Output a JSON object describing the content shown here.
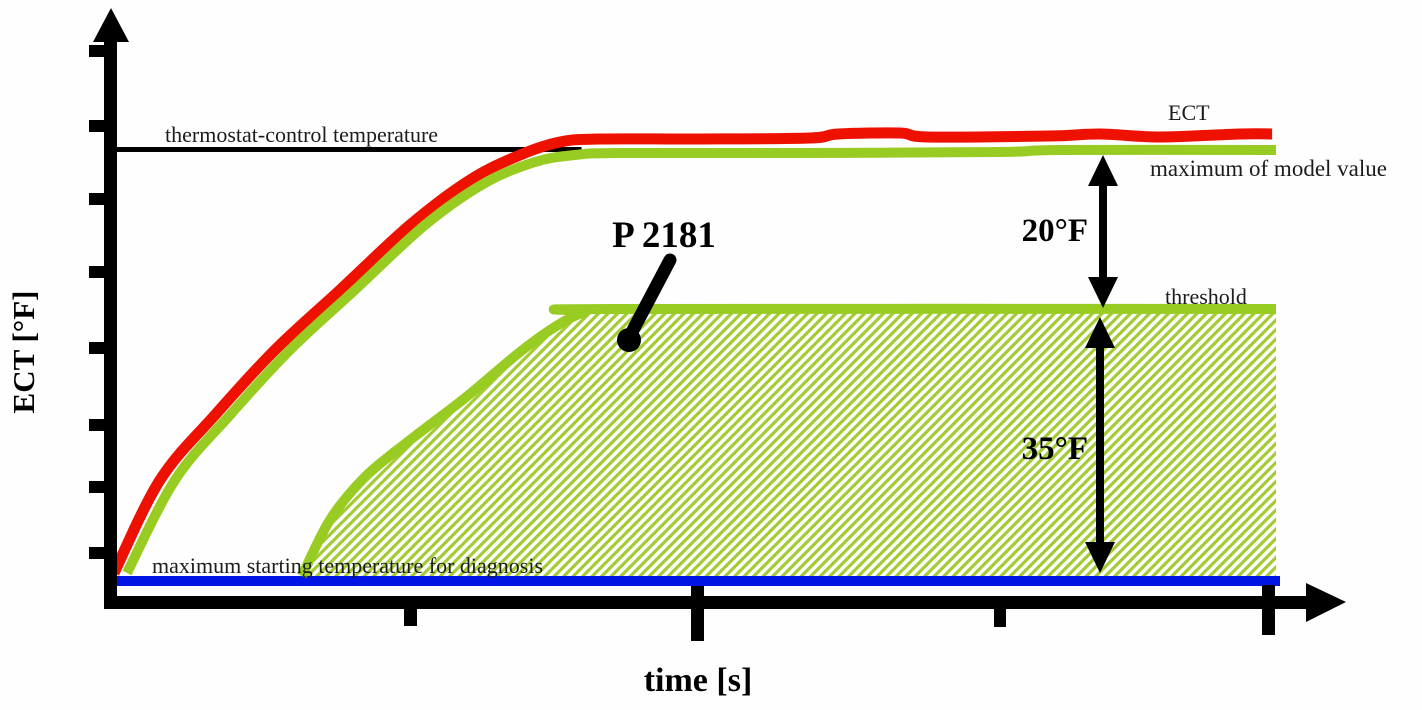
{
  "figure_title": "ECT diagnosis threshold diagram",
  "axes": {
    "y_label": "ECT [°F]",
    "x_label": "time [s]",
    "tick_labels": "none"
  },
  "labels": {
    "thermostat_line": "thermostat-control temperature",
    "ect_curve": "ECT",
    "model_max_curve": "maximum of model value",
    "threshold_line": "threshold",
    "start_temp_line": "maximum starting temperature for diagnosis",
    "fault_code": "P 2181",
    "gap_model_threshold": "20°F",
    "gap_threshold_start": "35°F"
  },
  "colors": {
    "ect_red": "#ee1100",
    "model_green": "#99cc22",
    "hatch_green": "#a3cc33",
    "start_blue": "#0014e6",
    "axis_black": "#000000"
  },
  "chart_data": {
    "type": "line",
    "title": "",
    "xlabel": "time [s]",
    "ylabel": "ECT [°F]",
    "x_unit": "arbitrary time (no tick values shown)",
    "y_unit": "°F above maximum starting temperature for diagnosis",
    "grid": false,
    "x_ticks_unlabeled": 4,
    "y_ticks_unlabeled": 8,
    "xlim": [
      0,
      100
    ],
    "ylim": [
      -2,
      72
    ],
    "reference_lines": [
      {
        "name": "thermostat-control temperature",
        "value_F": 55.5,
        "from_t": 0,
        "to_t": 40.2,
        "color": "#000000"
      },
      {
        "name": "maximum starting temperature for diagnosis",
        "value_F": 0,
        "from_t": 0,
        "to_t": 100,
        "color": "#0014e6"
      }
    ],
    "series": [
      {
        "name": "ECT",
        "color": "#ee1100",
        "points": [
          [
            0.17,
            1.03
          ],
          [
            4.11,
            12.99
          ],
          [
            8.82,
            21.35
          ],
          [
            13.95,
            29.71
          ],
          [
            19.52,
            37.43
          ],
          [
            25.51,
            45.79
          ],
          [
            30.65,
            51.58
          ],
          [
            34.93,
            54.79
          ],
          [
            38.36,
            56.46
          ],
          [
            41.78,
            56.85
          ],
          [
            50.34,
            56.85
          ],
          [
            59.76,
            56.98
          ],
          [
            62.16,
            57.49
          ],
          [
            67.47,
            57.62
          ],
          [
            69.86,
            57.11
          ],
          [
            80.31,
            57.23
          ],
          [
            84.59,
            57.49
          ],
          [
            89.73,
            57.11
          ],
          [
            96.58,
            57.49
          ],
          [
            99.32,
            57.49
          ]
        ]
      },
      {
        "name": "maximum of model value",
        "color": "#99cc22",
        "points": [
          [
            1.28,
            1.03
          ],
          [
            5.39,
            12.99
          ],
          [
            10.1,
            21.35
          ],
          [
            15.24,
            29.71
          ],
          [
            20.8,
            37.43
          ],
          [
            26.8,
            45.79
          ],
          [
            31.93,
            51.19
          ],
          [
            36.22,
            53.89
          ],
          [
            39.64,
            54.79
          ],
          [
            43.49,
            55.05
          ],
          [
            58.9,
            55.05
          ],
          [
            76.03,
            55.18
          ],
          [
            81.16,
            55.43
          ],
          [
            99.66,
            55.43
          ]
        ]
      },
      {
        "name": "threshold",
        "color": "#99cc22",
        "area_hatched_to_baseline": true,
        "points": [
          [
            16.27,
            0.64
          ],
          [
            18.66,
            7.85
          ],
          [
            21.66,
            13.38
          ],
          [
            25.51,
            18.14
          ],
          [
            30.22,
            23.54
          ],
          [
            34.93,
            29.45
          ],
          [
            38.18,
            32.93
          ],
          [
            40.5,
            34.6
          ],
          [
            42.64,
            34.98
          ],
          [
            99.66,
            34.98
          ]
        ]
      }
    ],
    "annotations": [
      {
        "text": "P 2181",
        "points_to": "hatched area below threshold"
      },
      {
        "text": "20°F",
        "arrow_between": [
          "maximum of model value",
          "threshold"
        ]
      },
      {
        "text": "35°F",
        "arrow_between": [
          "threshold",
          "maximum starting temperature for diagnosis"
        ]
      }
    ]
  }
}
